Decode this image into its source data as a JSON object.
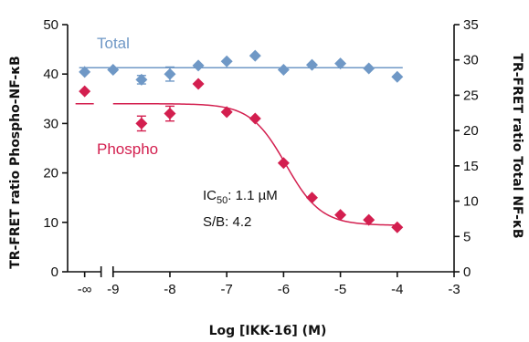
{
  "chart_data": {
    "type": "scatter",
    "xlabel": "Log [IKK-16] (M)",
    "ylabel_left": "TR-FRET ratio Phospho-NF-κB",
    "ylabel_right": "TR-FRET ratio Total NF-κB",
    "x_ticks": [
      "-∞",
      "-9",
      "-8",
      "-7",
      "-6",
      "-5",
      "-4",
      "-3"
    ],
    "x_tick_values": [
      -9.5,
      -9,
      -8,
      -7,
      -6,
      -5,
      -4,
      -3
    ],
    "xlim": [
      -9.8,
      -3
    ],
    "ylim_left": [
      0,
      50
    ],
    "ylim_right": [
      0,
      35
    ],
    "y_ticks_left": [
      0,
      10,
      20,
      30,
      40,
      50
    ],
    "y_ticks_right": [
      0,
      5,
      10,
      15,
      20,
      25,
      30,
      35
    ],
    "axis_break": "x between -∞ and -9",
    "grid": false,
    "series": [
      {
        "name": "Total",
        "axis": "right",
        "color": "#6f98c6",
        "marker": "diamond",
        "x": [
          -9.5,
          -9,
          -8.5,
          -8,
          -7.5,
          -7,
          -6.5,
          -6,
          -5.5,
          -5,
          -4.5,
          -4
        ],
        "y": [
          28.3,
          28.6,
          27.2,
          28.0,
          29.2,
          29.8,
          30.6,
          28.6,
          29.3,
          29.5,
          28.8,
          27.6
        ],
        "err": [
          0,
          0,
          0.6,
          1.0,
          0,
          0,
          0,
          0,
          0,
          0,
          0,
          0
        ],
        "fit_level": 28.9
      },
      {
        "name": "Phospho",
        "axis": "left",
        "color": "#d31f4f",
        "marker": "diamond",
        "x": [
          -9.5,
          -8.5,
          -8,
          -7.5,
          -7,
          -6.5,
          -6,
          -5.5,
          -5,
          -4.5,
          -4
        ],
        "y": [
          36.5,
          30.0,
          32.0,
          38.0,
          32.3,
          31.0,
          22.0,
          15.0,
          11.5,
          10.5,
          9.0
        ],
        "err": [
          0,
          1.5,
          1.5,
          0,
          0,
          0,
          0,
          0,
          0,
          0,
          0
        ],
        "fit": {
          "top": 34.0,
          "bottom": 9.4,
          "log_ic50": -5.96,
          "hill": 1.4
        }
      }
    ],
    "annotations": [
      {
        "ic50_prefix": "IC",
        "ic50_sub": "50",
        "ic50_value": ": 1.1 µM"
      },
      {
        "text": "S/B: 4.2"
      }
    ]
  }
}
